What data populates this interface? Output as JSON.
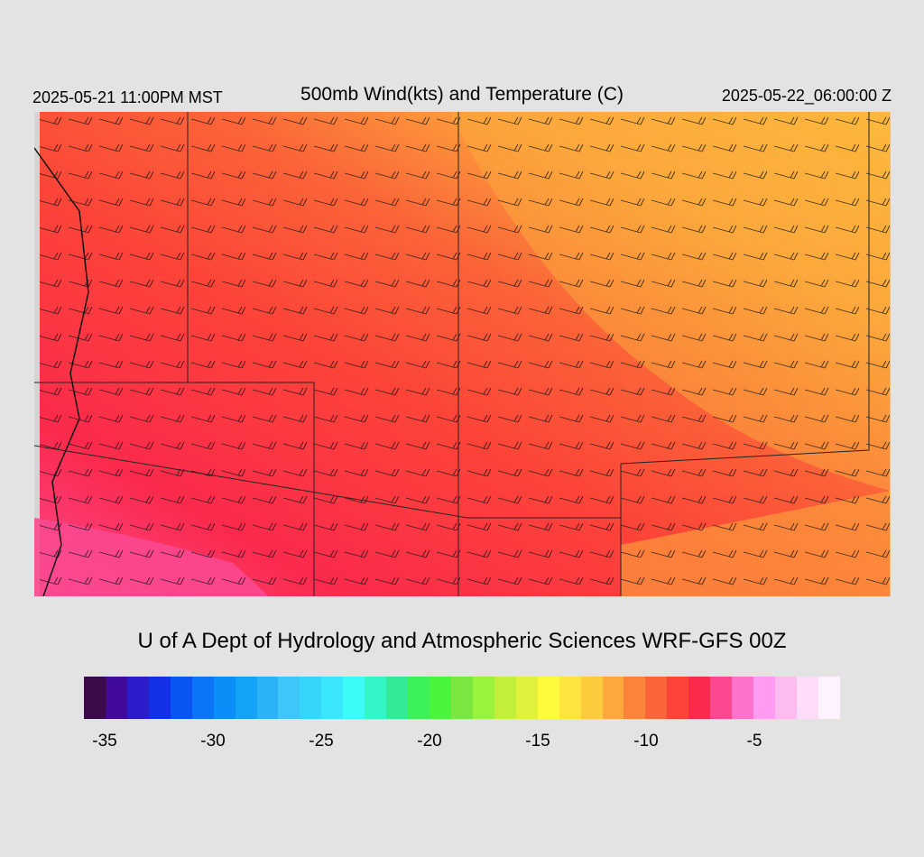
{
  "header": {
    "valid_time": "2025-05-21 11:00PM MST",
    "title": "500mb Wind(kts) and Temperature (C)",
    "init_time": "2025-05-22_06:00:00 Z"
  },
  "credit": "U of A Dept of Hydrology and Atmospheric Sciences WRF-GFS 00Z",
  "colorbar": {
    "colors": [
      "#3a0a4a",
      "#410a9c",
      "#2a1cc8",
      "#1330e6",
      "#0a55f2",
      "#0a76f5",
      "#0a8ef7",
      "#14a2f7",
      "#2ab3f7",
      "#3ec6fb",
      "#36d6fb",
      "#3ae6fc",
      "#3cfaf5",
      "#34f5c8",
      "#33ea98",
      "#3cf05c",
      "#48f53a",
      "#7ae640",
      "#9bf23d",
      "#c2f03a",
      "#e2f23c",
      "#fcfa3b",
      "#fde43e",
      "#fccc3c",
      "#fca83c",
      "#fb843a",
      "#fb6438",
      "#fc4438",
      "#fb2a4c",
      "#fb4890",
      "#fc72cc",
      "#fd9cf0",
      "#fdbcf0",
      "#fddcf8",
      "#fef2fe"
    ],
    "tick_labels": [
      "-35",
      "-30",
      "-25",
      "-20",
      "-15",
      "-10",
      "-5"
    ]
  }
}
